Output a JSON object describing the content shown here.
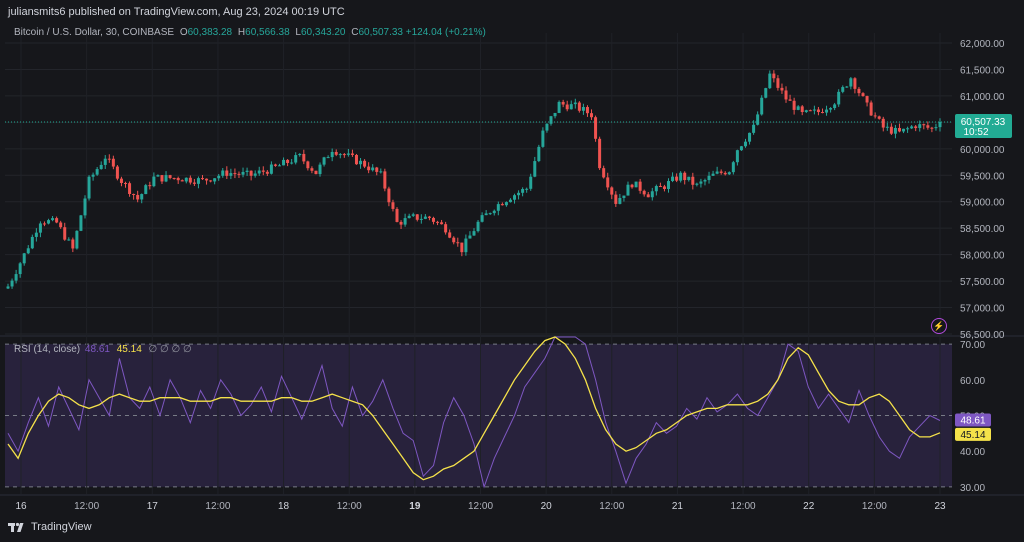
{
  "header": {
    "publish_text": "juliansmits6 published on TradingView.com, Aug 23, 2024 00:19 UTC"
  },
  "legend": {
    "symbol": "Bitcoin / U.S. Dollar, 30, COINBASE",
    "o_label": "O",
    "o_value": "60,383.28",
    "h_label": "H",
    "h_value": "60,566.38",
    "l_label": "L",
    "l_value": "60,343.20",
    "c_label": "C",
    "c_value": "60,507.33",
    "change": "+124.04 (+0.21%)"
  },
  "rsi_legend": {
    "label": "RSI (14, close)",
    "rsi_value": "48.61",
    "ma_value": "45.14",
    "placeholders": "∅ ∅ ∅ ∅"
  },
  "price_badge": {
    "price": "60,507.33",
    "countdown": "10:52"
  },
  "rsi_badges": {
    "rsi": "48.61",
    "ma": "45.14"
  },
  "footer": {
    "brand": "TradingView"
  },
  "icons": {
    "alert": "lightning-icon",
    "logo": "tradingview-logo-icon"
  },
  "colors": {
    "up": "#26a69a",
    "down": "#ef5350",
    "rsi": "#7e57c2",
    "rsi_ma": "#f5e24a",
    "badge": "#22ab94",
    "background": "#16171b"
  },
  "chart_data": [
    {
      "type": "candlestick",
      "title": "Bitcoin / U.S. Dollar, 30, COINBASE",
      "ylim": [
        56500,
        62000
      ],
      "y_ticks": [
        "62,000.00",
        "61,500.00",
        "61,000.00",
        "60,500.00",
        "60,000.00",
        "59,500.00",
        "59,000.00",
        "58,500.00",
        "58,000.00",
        "57,500.00",
        "57,000.00",
        "56,500.00"
      ],
      "x_ticks": [
        "16",
        "12:00",
        "17",
        "12:00",
        "18",
        "12:00",
        "19",
        "12:00",
        "20",
        "12:00",
        "21",
        "12:00",
        "22",
        "12:00",
        "23"
      ],
      "last_price": 60507.33,
      "close_path": [
        {
          "x": 0,
          "y": 57400
        },
        {
          "x": 4,
          "y": 58000
        },
        {
          "x": 8,
          "y": 58650
        },
        {
          "x": 12,
          "y": 58600
        },
        {
          "x": 16,
          "y": 58100
        },
        {
          "x": 20,
          "y": 59400
        },
        {
          "x": 24,
          "y": 59850
        },
        {
          "x": 28,
          "y": 59400
        },
        {
          "x": 32,
          "y": 59050
        },
        {
          "x": 36,
          "y": 59450
        },
        {
          "x": 42,
          "y": 59450
        },
        {
          "x": 48,
          "y": 59400
        },
        {
          "x": 54,
          "y": 59550
        },
        {
          "x": 60,
          "y": 59500
        },
        {
          "x": 66,
          "y": 59650
        },
        {
          "x": 72,
          "y": 59850
        },
        {
          "x": 76,
          "y": 59550
        },
        {
          "x": 80,
          "y": 60000
        },
        {
          "x": 84,
          "y": 59850
        },
        {
          "x": 88,
          "y": 59700
        },
        {
          "x": 92,
          "y": 59500
        },
        {
          "x": 96,
          "y": 58600
        },
        {
          "x": 100,
          "y": 58700
        },
        {
          "x": 104,
          "y": 58700
        },
        {
          "x": 108,
          "y": 58500
        },
        {
          "x": 112,
          "y": 58100
        },
        {
          "x": 116,
          "y": 58600
        },
        {
          "x": 120,
          "y": 58900
        },
        {
          "x": 124,
          "y": 59100
        },
        {
          "x": 128,
          "y": 59250
        },
        {
          "x": 132,
          "y": 60300
        },
        {
          "x": 136,
          "y": 60850
        },
        {
          "x": 140,
          "y": 60800
        },
        {
          "x": 144,
          "y": 60650
        },
        {
          "x": 146,
          "y": 59700
        },
        {
          "x": 150,
          "y": 59000
        },
        {
          "x": 154,
          "y": 59350
        },
        {
          "x": 158,
          "y": 59150
        },
        {
          "x": 162,
          "y": 59300
        },
        {
          "x": 166,
          "y": 59500
        },
        {
          "x": 170,
          "y": 59300
        },
        {
          "x": 174,
          "y": 59500
        },
        {
          "x": 178,
          "y": 59600
        },
        {
          "x": 180,
          "y": 60000
        },
        {
          "x": 184,
          "y": 60400
        },
        {
          "x": 188,
          "y": 61400
        },
        {
          "x": 192,
          "y": 60950
        },
        {
          "x": 196,
          "y": 60650
        },
        {
          "x": 200,
          "y": 60700
        },
        {
          "x": 204,
          "y": 60900
        },
        {
          "x": 208,
          "y": 61350
        },
        {
          "x": 212,
          "y": 60800
        },
        {
          "x": 216,
          "y": 60400
        },
        {
          "x": 220,
          "y": 60300
        },
        {
          "x": 224,
          "y": 60450
        },
        {
          "x": 228,
          "y": 60380
        },
        {
          "x": 230,
          "y": 60507
        }
      ]
    },
    {
      "type": "line",
      "title": "RSI (14, close)",
      "ylim": [
        28,
        72
      ],
      "y_ticks": [
        "70.00",
        "60.00",
        "50.00",
        "40.00",
        "30.00"
      ],
      "upper_band": 70,
      "mid_band": 50,
      "lower_band": 30,
      "series": [
        {
          "name": "RSI",
          "values": [
            45,
            40,
            48,
            55,
            47,
            58,
            52,
            46,
            60,
            55,
            50,
            66,
            55,
            52,
            58,
            50,
            60,
            55,
            48,
            57,
            52,
            60,
            56,
            50,
            53,
            58,
            51,
            61,
            55,
            49,
            56,
            64,
            52,
            47,
            58,
            50,
            54,
            60,
            52,
            45,
            43,
            33,
            36,
            48,
            55,
            50,
            42,
            30,
            38,
            44,
            50,
            58,
            62,
            66,
            72,
            75,
            73,
            70,
            60,
            48,
            40,
            31,
            38,
            42,
            48,
            45,
            47,
            52,
            49,
            55,
            51,
            53,
            56,
            52,
            50,
            55,
            60,
            70,
            68,
            58,
            52,
            56,
            52,
            48,
            57,
            50,
            44,
            40,
            38,
            44,
            47,
            50,
            48.61
          ]
        },
        {
          "name": "RSI-based MA",
          "values": [
            42,
            38,
            45,
            50,
            54,
            56,
            55,
            53,
            52,
            53,
            55,
            56,
            55,
            54,
            54,
            55,
            55,
            55,
            54,
            54,
            54,
            55,
            55,
            54,
            54,
            54,
            54,
            55,
            55,
            54,
            54,
            55,
            56,
            55,
            54,
            53,
            50,
            46,
            42,
            38,
            34,
            32,
            33,
            35,
            36,
            38,
            40,
            45,
            50,
            55,
            60,
            64,
            68,
            71,
            72,
            70,
            66,
            60,
            52,
            46,
            42,
            40,
            41,
            43,
            45,
            46,
            48,
            50,
            51,
            52,
            52,
            53,
            53,
            53,
            54,
            56,
            60,
            66,
            69,
            67,
            62,
            57,
            54,
            53,
            53,
            55,
            56,
            54,
            50,
            46,
            44,
            44,
            45.14
          ]
        }
      ]
    }
  ]
}
